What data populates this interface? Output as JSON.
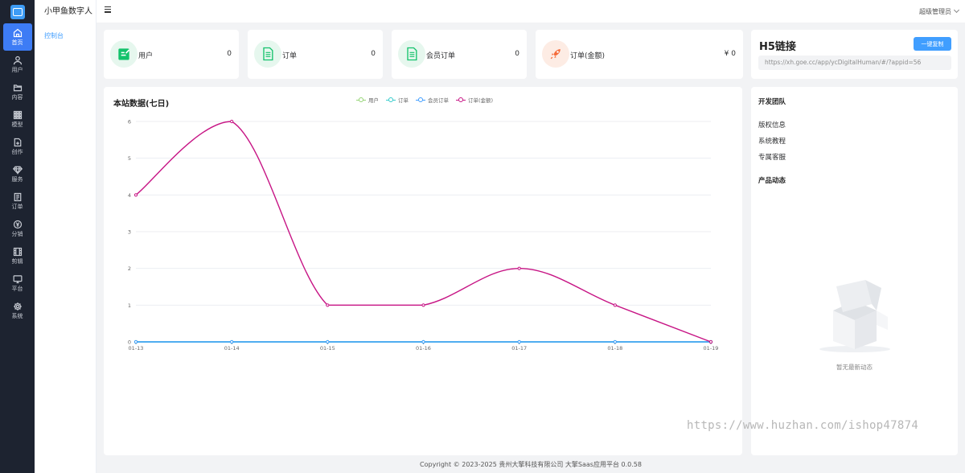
{
  "sidebar": {
    "items": [
      {
        "label": "首页",
        "icon": "home-icon",
        "active": true
      },
      {
        "label": "用户",
        "icon": "user-icon"
      },
      {
        "label": "内容",
        "icon": "folder-icon"
      },
      {
        "label": "模型",
        "icon": "grid-icon"
      },
      {
        "label": "创作",
        "icon": "file-plus-icon"
      },
      {
        "label": "服务",
        "icon": "diamond-icon"
      },
      {
        "label": "订单",
        "icon": "receipt-icon"
      },
      {
        "label": "分销",
        "icon": "yen-circle-icon"
      },
      {
        "label": "剪辑",
        "icon": "film-icon"
      },
      {
        "label": "平台",
        "icon": "monitor-icon"
      },
      {
        "label": "系统",
        "icon": "gear-icon"
      }
    ]
  },
  "side": {
    "brand": "小甲鱼数字人",
    "menu": [
      "控制台"
    ]
  },
  "header": {
    "user": "超级管理员"
  },
  "stats": [
    {
      "name": "用户",
      "value": "0",
      "icon": "edit-doc-icon",
      "bg": "#e6f7ee",
      "color": "#13c26b"
    },
    {
      "name": "订单",
      "value": "0",
      "icon": "doc-icon",
      "bg": "#e6f7ee",
      "color": "#13c26b"
    },
    {
      "name": "会员订单",
      "value": "0",
      "icon": "doc-icon",
      "bg": "#e6f7ee",
      "color": "#13c26b"
    },
    {
      "name": "订单(金额)",
      "value": "¥ 0",
      "icon": "rocket-icon",
      "bg": "#fdece4",
      "color": "#f56c3b"
    }
  ],
  "h5": {
    "title": "H5链接",
    "button": "一键复制",
    "url": "https://xh.goe.cc/app/ycDigitalHuman/#/?appid=56"
  },
  "chart_data": {
    "type": "line",
    "title": "本站数据(七日)",
    "categories": [
      "01-13",
      "01-14",
      "01-15",
      "01-16",
      "01-17",
      "01-18",
      "01-19"
    ],
    "ylim": [
      0,
      6
    ],
    "yticks": [
      "0",
      "1",
      "2",
      "3",
      "4",
      "5",
      "6"
    ],
    "grid": true,
    "legend_position": "top-center",
    "series": [
      {
        "name": "用户",
        "color": "#95d475",
        "values": [
          0,
          0,
          0,
          0,
          0,
          0,
          0
        ]
      },
      {
        "name": "订单",
        "color": "#36cbcb",
        "values": [
          0,
          0,
          0,
          0,
          0,
          0,
          0
        ]
      },
      {
        "name": "会员订单",
        "color": "#409eff",
        "values": [
          0,
          0,
          0,
          0,
          0,
          0,
          0
        ]
      },
      {
        "name": "订单(金额)",
        "color": "#c71585",
        "values": [
          4,
          6,
          1,
          1,
          2,
          1,
          0
        ]
      }
    ]
  },
  "right": {
    "team_title": "开发团队",
    "links": [
      "版权信息",
      "系统教程",
      "专属客服"
    ],
    "news_title": "产品动态",
    "empty_text": "暂无最新动态"
  },
  "footer": "Copyright © 2023-2025 贵州大擎科技有限公司   大擎Saas应用平台 0.0.58",
  "watermark": "https://www.huzhan.com/ishop47874"
}
